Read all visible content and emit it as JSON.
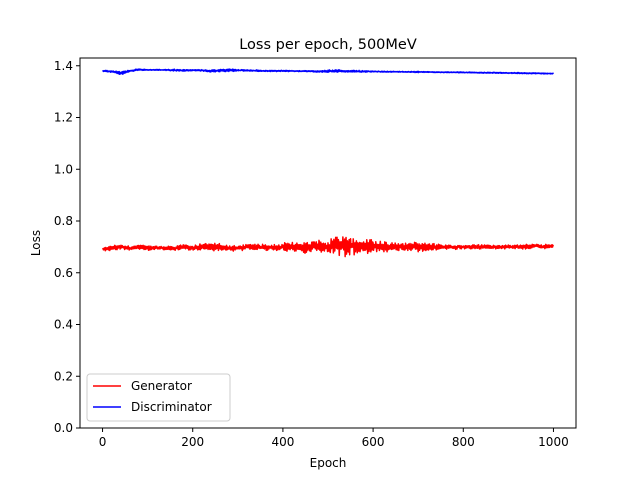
{
  "chart_data": {
    "type": "line",
    "title": "Loss per epoch, 500MeV",
    "xlabel": "Epoch",
    "ylabel": "Loss",
    "xlim": [
      -50,
      1050
    ],
    "ylim": [
      0.0,
      1.43
    ],
    "x_ticks": [
      0,
      200,
      400,
      600,
      800,
      1000
    ],
    "x_tick_labels": [
      "0",
      "200",
      "400",
      "600",
      "800",
      "1000"
    ],
    "y_ticks": [
      0.0,
      0.2,
      0.4,
      0.6,
      0.8,
      1.0,
      1.2,
      1.4
    ],
    "y_tick_labels": [
      "0.0",
      "0.2",
      "0.4",
      "0.6",
      "0.8",
      "1.0",
      "1.2",
      "1.4"
    ],
    "grid": false,
    "legend_position": "lower-left",
    "x_range": [
      0,
      1000
    ],
    "series": [
      {
        "name": "Generator",
        "color": "#ff0000",
        "x": [
          0,
          20,
          40,
          60,
          80,
          100,
          120,
          140,
          160,
          180,
          200,
          220,
          240,
          260,
          280,
          300,
          320,
          340,
          360,
          380,
          400,
          420,
          440,
          460,
          480,
          500,
          520,
          540,
          560,
          580,
          600,
          620,
          640,
          660,
          680,
          700,
          720,
          740,
          760,
          780,
          800,
          820,
          840,
          860,
          880,
          900,
          920,
          940,
          960,
          980,
          1000
        ],
        "y": [
          0.69,
          0.695,
          0.7,
          0.695,
          0.7,
          0.695,
          0.697,
          0.695,
          0.695,
          0.7,
          0.695,
          0.7,
          0.698,
          0.7,
          0.695,
          0.695,
          0.7,
          0.698,
          0.7,
          0.698,
          0.7,
          0.7,
          0.695,
          0.7,
          0.705,
          0.7,
          0.71,
          0.7,
          0.705,
          0.7,
          0.7,
          0.7,
          0.7,
          0.7,
          0.7,
          0.7,
          0.7,
          0.7,
          0.7,
          0.7,
          0.7,
          0.7,
          0.7,
          0.7,
          0.7,
          0.7,
          0.7,
          0.7,
          0.705,
          0.7,
          0.705
        ],
        "amplitude": [
          0.006,
          0.012,
          0.01,
          0.008,
          0.01,
          0.01,
          0.008,
          0.008,
          0.01,
          0.01,
          0.01,
          0.014,
          0.016,
          0.016,
          0.012,
          0.012,
          0.012,
          0.012,
          0.014,
          0.014,
          0.018,
          0.02,
          0.024,
          0.022,
          0.028,
          0.024,
          0.04,
          0.045,
          0.04,
          0.032,
          0.028,
          0.022,
          0.02,
          0.016,
          0.018,
          0.02,
          0.018,
          0.012,
          0.01,
          0.01,
          0.008,
          0.008,
          0.01,
          0.008,
          0.008,
          0.008,
          0.008,
          0.01,
          0.01,
          0.01,
          0.01
        ]
      },
      {
        "name": "Discriminator",
        "color": "#0000ff",
        "x": [
          0,
          20,
          40,
          60,
          80,
          100,
          120,
          140,
          160,
          180,
          200,
          220,
          240,
          260,
          280,
          300,
          320,
          340,
          360,
          380,
          400,
          420,
          440,
          460,
          480,
          500,
          520,
          540,
          560,
          580,
          600,
          620,
          640,
          660,
          680,
          700,
          720,
          740,
          760,
          780,
          800,
          820,
          840,
          860,
          880,
          900,
          920,
          940,
          960,
          980,
          1000
        ],
        "y": [
          1.38,
          1.378,
          1.372,
          1.38,
          1.385,
          1.384,
          1.384,
          1.384,
          1.383,
          1.382,
          1.383,
          1.382,
          1.38,
          1.382,
          1.383,
          1.382,
          1.382,
          1.381,
          1.38,
          1.38,
          1.38,
          1.38,
          1.379,
          1.379,
          1.378,
          1.379,
          1.38,
          1.379,
          1.379,
          1.378,
          1.378,
          1.377,
          1.377,
          1.377,
          1.376,
          1.376,
          1.376,
          1.375,
          1.375,
          1.375,
          1.374,
          1.374,
          1.373,
          1.373,
          1.373,
          1.372,
          1.372,
          1.371,
          1.371,
          1.37,
          1.37
        ],
        "amplitude": [
          0.003,
          0.004,
          0.008,
          0.004,
          0.003,
          0.002,
          0.002,
          0.002,
          0.004,
          0.004,
          0.002,
          0.004,
          0.004,
          0.005,
          0.006,
          0.004,
          0.003,
          0.003,
          0.002,
          0.003,
          0.003,
          0.002,
          0.002,
          0.003,
          0.004,
          0.005,
          0.005,
          0.004,
          0.004,
          0.003,
          0.002,
          0.002,
          0.002,
          0.002,
          0.002,
          0.003,
          0.002,
          0.002,
          0.002,
          0.002,
          0.002,
          0.002,
          0.002,
          0.002,
          0.002,
          0.002,
          0.002,
          0.002,
          0.002,
          0.002,
          0.002
        ]
      }
    ]
  }
}
